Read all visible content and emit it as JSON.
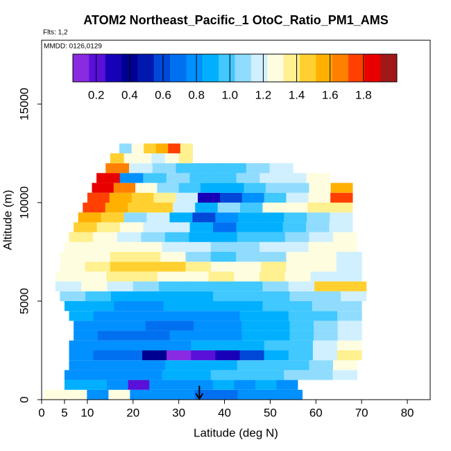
{
  "chart_data": {
    "type": "heatmap",
    "title": "ATOM2 Northeast_Pacific_1 OtoC_Ratio_PM1_AMS",
    "annotations": [
      "Flts: 1,2",
      "MMDD: 0126,0129"
    ],
    "x_label": "Latitude (deg N)",
    "y_label": "Altitude (m)",
    "xlim": [
      0,
      85
    ],
    "xticks": [
      0,
      5,
      10,
      20,
      30,
      40,
      50,
      60,
      70,
      80
    ],
    "ylim": [
      0,
      18240
    ],
    "yticks": [
      0,
      5000,
      10000,
      15000
    ],
    "row_height": 500,
    "marker_lat": 34.5,
    "colorbar": {
      "lim": [
        0.06,
        2.0
      ],
      "ticks": [
        0.2,
        0.4,
        0.6,
        0.8,
        {
          "value": 1,
          "label": "1.0"
        },
        1.2,
        1.4,
        1.6,
        1.8
      ],
      "colors": [
        "#8a2be2",
        "#5a10d8",
        "#1800b8",
        "#000090",
        "#0018b0",
        "#0048d8",
        "#0070f0",
        "#0090ff",
        "#00b0ff",
        "#40c8ff",
        "#90dcff",
        "#d0f0ff",
        "#fffde0",
        "#fff090",
        "#ffd030",
        "#ffb000",
        "#ff8000",
        "#ff4000",
        "#e80000",
        "#a01818"
      ]
    },
    "rows": [
      {
        "alt": 0,
        "lat": [
          0.5,
          57
        ],
        "values": [
          1.3,
          1.25,
          0.8,
          1.25,
          0.8,
          0.8,
          0.75,
          0.7,
          0.7,
          0.8,
          0.8,
          0.75
        ]
      },
      {
        "alt": 500,
        "lat": [
          5,
          56
        ],
        "values": [
          0.85,
          0.85,
          0.8,
          0.2,
          0.8,
          0.8,
          0.8,
          0.85,
          0.75,
          0.9,
          0.75
        ]
      },
      {
        "alt": 1000,
        "lat": [
          5,
          69
        ],
        "values": [
          0.75,
          0.75,
          0.8,
          0.8,
          0.85,
          0.9,
          0.95,
          0.95,
          1.0,
          1.05,
          1.1,
          1.2
        ]
      },
      {
        "alt": 1500,
        "lat": [
          6,
          69
        ],
        "values": [
          0.8,
          0.8,
          0.75,
          0.8,
          0.85,
          0.9,
          0.9,
          0.95,
          0.95,
          1.0,
          1.1,
          1.3
        ]
      },
      {
        "alt": 2000,
        "lat": [
          6,
          70
        ],
        "values": [
          0.75,
          0.7,
          0.7,
          0.4,
          0.15,
          0.2,
          0.3,
          0.6,
          0.85,
          1.0,
          1.2,
          1.4
        ]
      },
      {
        "alt": 2500,
        "lat": [
          6,
          70
        ],
        "values": [
          0.8,
          0.8,
          0.75,
          0.75,
          0.8,
          0.85,
          0.9,
          0.9,
          0.95,
          1.0,
          1.15,
          1.3
        ]
      },
      {
        "alt": 3000,
        "lat": [
          7,
          70
        ],
        "values": [
          0.75,
          0.7,
          0.7,
          0.7,
          0.75,
          0.75,
          0.8,
          0.85,
          0.9,
          1.0,
          1.1,
          1.2
        ]
      },
      {
        "alt": 3500,
        "lat": [
          7,
          70
        ],
        "values": [
          0.8,
          0.75,
          0.75,
          0.7,
          0.7,
          0.75,
          0.8,
          0.85,
          0.9,
          1.0,
          1.05,
          1.15
        ]
      },
      {
        "alt": 4000,
        "lat": [
          6,
          70
        ],
        "values": [
          0.85,
          0.8,
          0.8,
          0.75,
          0.75,
          0.8,
          0.8,
          0.85,
          0.9,
          0.95,
          1.0,
          1.1
        ]
      },
      {
        "alt": 4500,
        "lat": [
          5,
          70
        ],
        "values": [
          0.85,
          0.85,
          0.8,
          0.8,
          0.85,
          0.85,
          0.9,
          0.9,
          0.95,
          1.0,
          1.05,
          1.1
        ]
      },
      {
        "alt": 5000,
        "lat": [
          4,
          71
        ],
        "values": [
          1.1,
          1.0,
          0.9,
          0.85,
          0.85,
          0.9,
          0.95,
          1.0,
          1.0,
          1.05,
          1.1,
          1.15
        ]
      },
      {
        "alt": 5500,
        "lat": [
          3,
          71
        ],
        "values": [
          1.2,
          1.3,
          1.2,
          1.1,
          1.0,
          1.0,
          0.95,
          1.0,
          1.1,
          1.2,
          1.5,
          1.5
        ]
      },
      {
        "alt": 6000,
        "lat": [
          3,
          70
        ],
        "values": [
          1.3,
          1.3,
          1.4,
          1.4,
          1.3,
          1.3,
          1.4,
          1.3,
          1.4,
          1.3,
          1.2,
          1.2
        ]
      },
      {
        "alt": 6500,
        "lat": [
          4,
          70
        ],
        "values": [
          1.25,
          1.35,
          1.5,
          1.5,
          1.45,
          1.4,
          1.3,
          1.3,
          1.35,
          1.3,
          1.25,
          1.2
        ]
      },
      {
        "alt": 7000,
        "lat": [
          4,
          70
        ],
        "values": [
          1.3,
          1.3,
          1.4,
          1.35,
          1.25,
          1.1,
          1.0,
          1.05,
          1.1,
          1.25,
          1.3,
          1.2
        ]
      },
      {
        "alt": 7500,
        "lat": [
          5,
          69
        ],
        "values": [
          1.3,
          1.3,
          1.3,
          1.25,
          1.2,
          1.15,
          1.1,
          1.1,
          1.15,
          1.2,
          1.25,
          1.3
        ]
      },
      {
        "alt": 8000,
        "lat": [
          6,
          69
        ],
        "values": [
          1.4,
          1.3,
          1.2,
          1.1,
          1.0,
          0.9,
          0.9,
          0.95,
          1.0,
          1.1,
          1.2,
          1.25
        ]
      },
      {
        "alt": 8500,
        "lat": [
          7,
          68
        ],
        "values": [
          1.5,
          1.4,
          1.3,
          1.2,
          1.15,
          0.85,
          0.7,
          0.85,
          0.9,
          1.0,
          1.1,
          1.2
        ]
      },
      {
        "alt": 9000,
        "lat": [
          8,
          68
        ],
        "values": [
          1.6,
          1.5,
          1.1,
          1.2,
          0.9,
          0.6,
          0.8,
          0.9,
          0.85,
          1.0,
          1.1,
          1.2
        ]
      },
      {
        "alt": 9500,
        "lat": [
          9,
          68
        ],
        "values": [
          1.8,
          1.6,
          1.5,
          1.5,
          1.2,
          0.9,
          1.1,
          1.0,
          1.3,
          1.3,
          1.4,
          1.35
        ]
      },
      {
        "alt": 10000,
        "lat": [
          10,
          68
        ],
        "values": [
          1.8,
          1.6,
          1.5,
          1.4,
          1.2,
          0.3,
          0.6,
          0.8,
          1.0,
          1.2,
          1.3,
          1.8
        ]
      },
      {
        "alt": 10500,
        "lat": [
          11,
          68
        ],
        "values": [
          1.9,
          1.7,
          1.3,
          1.1,
          1.0,
          0.9,
          0.9,
          1.0,
          1.05,
          1.1,
          1.3,
          1.6
        ]
      },
      {
        "alt": 11000,
        "lat": [
          12,
          63
        ],
        "values": [
          1.9,
          0.8,
          1.0,
          1.05,
          0.95,
          1.0,
          1.1,
          1.15,
          1.2,
          1.3
        ]
      },
      {
        "alt": 11500,
        "lat": [
          14,
          55
        ],
        "values": [
          1.7,
          1.2,
          1.1,
          1.0,
          0.95,
          1.0,
          1.1,
          1.15
        ]
      },
      {
        "alt": 12000,
        "lat": [
          15,
          33
        ],
        "values": [
          1.5,
          1.3,
          1.3,
          1.2,
          1.3,
          1.4
        ]
      },
      {
        "alt": 12500,
        "lat": [
          17,
          33
        ],
        "values": [
          1.1,
          1.3,
          1.5,
          1.6,
          1.8,
          1.4
        ]
      }
    ]
  }
}
